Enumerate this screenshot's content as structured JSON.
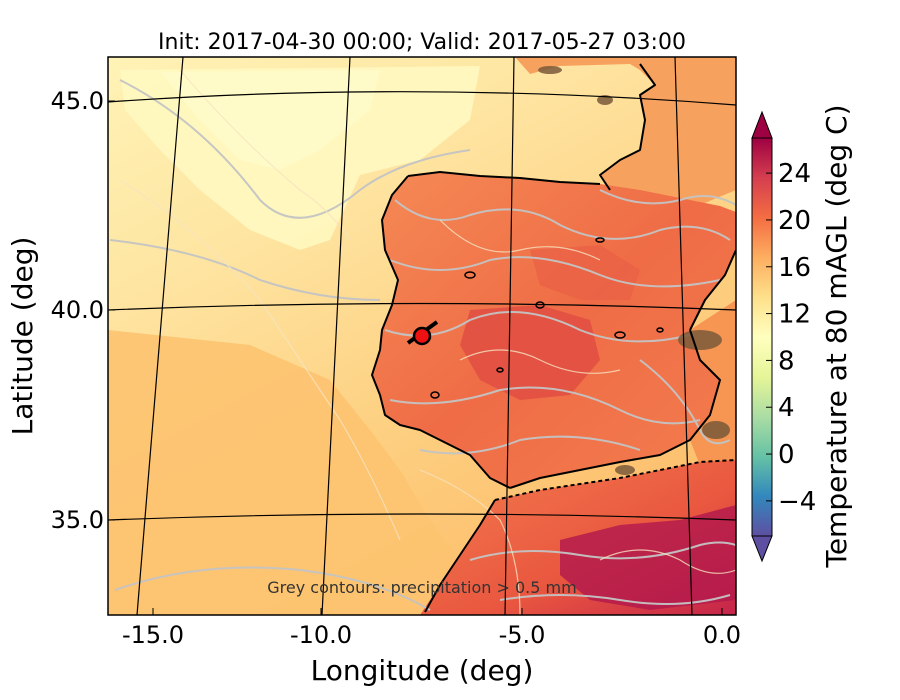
{
  "map": {
    "title": "Init: 2017-04-30 00:00; Valid: 2017-05-27 03:00",
    "xlabel": "Longitude (deg)",
    "ylabel": "Latitude (deg)",
    "x_ticks": [
      "-15.0",
      "-10.0",
      "-5.0",
      "0.0"
    ],
    "y_ticks": [
      "45.0",
      "40.0",
      "35.0"
    ],
    "annotation": "Grey contours: precipitation > 0.5 mm",
    "marker": {
      "lon": -7.7,
      "lat": 39.3,
      "color": "#ee1111"
    },
    "colors": {
      "ocean_cool": "#fde9a4",
      "ocean_warm": "#fdc46e",
      "land_hot": "#f07048",
      "precip_contour": "#c4c4c4",
      "coastline": "#000000",
      "grid": "#000000"
    }
  },
  "colorbar": {
    "label": "Temperature at 80 mAGL (deg C)",
    "ticks": [
      "24",
      "20",
      "16",
      "12",
      "8",
      "4",
      "0",
      "−4"
    ],
    "min": -7,
    "max": 27,
    "extend": "both",
    "colormap": "Spectral_r"
  }
}
